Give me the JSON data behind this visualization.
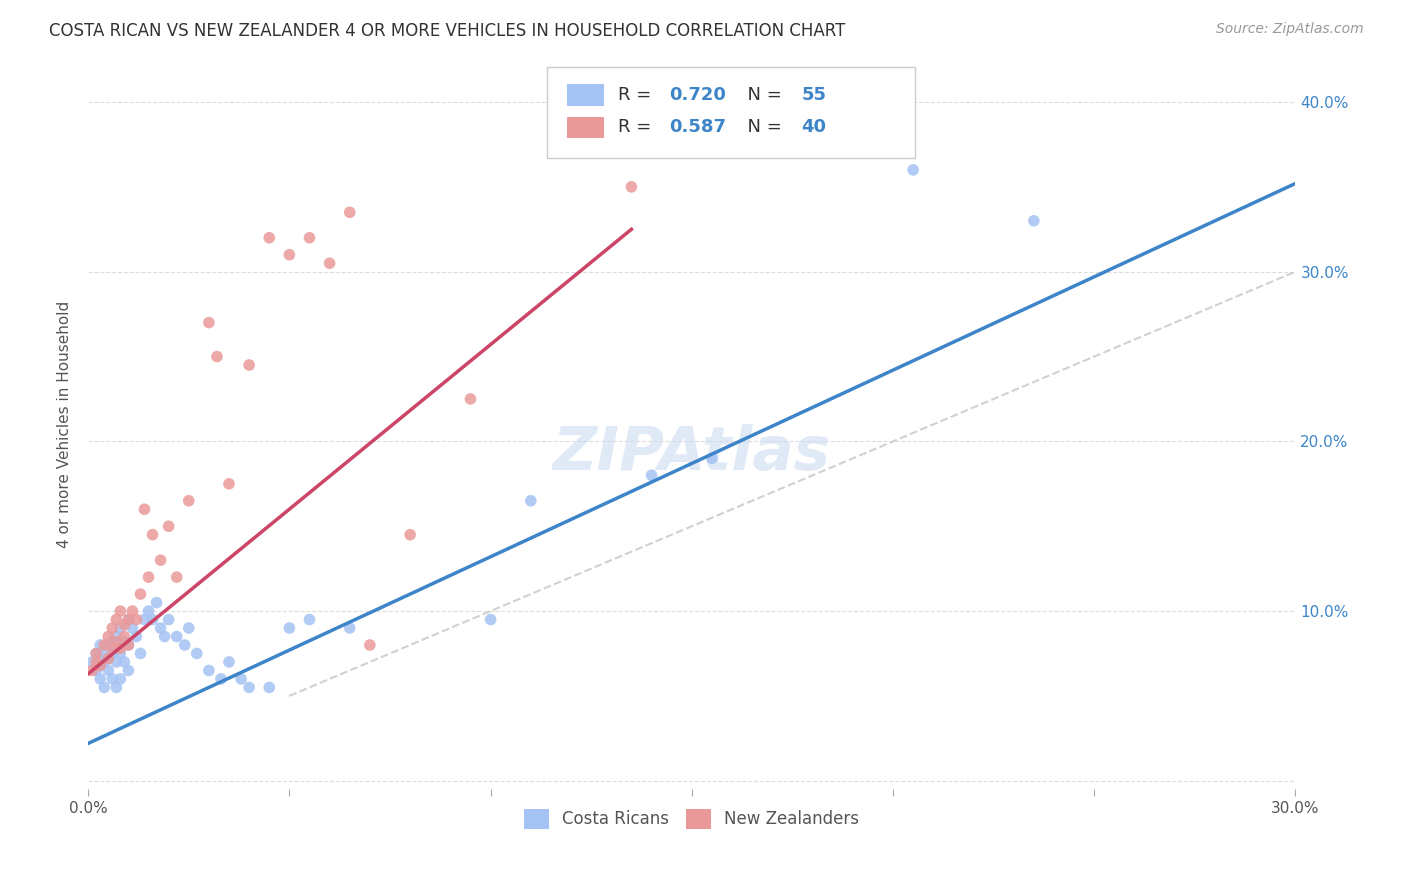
{
  "title": "COSTA RICAN VS NEW ZEALANDER 4 OR MORE VEHICLES IN HOUSEHOLD CORRELATION CHART",
  "source": "Source: ZipAtlas.com",
  "ylabel": "4 or more Vehicles in Household",
  "x_min": 0.0,
  "x_max": 0.3,
  "y_min": -0.005,
  "y_max": 0.425,
  "x_ticks": [
    0.0,
    0.05,
    0.1,
    0.15,
    0.2,
    0.25,
    0.3
  ],
  "x_tick_labels": [
    "0.0%",
    "",
    "",
    "",
    "",
    "",
    "30.0%"
  ],
  "y_ticks": [
    0.0,
    0.1,
    0.2,
    0.3,
    0.4
  ],
  "y_tick_labels": [
    "",
    "10.0%",
    "20.0%",
    "30.0%",
    "40.0%"
  ],
  "watermark": "ZIPAtlas",
  "blue_color": "#a4c2f4",
  "pink_color": "#ea9999",
  "blue_line_color": "#3d85c8",
  "pink_line_color": "#cc4466",
  "diagonal_color": "#cccccc",
  "R_blue": 0.72,
  "N_blue": 55,
  "R_pink": 0.587,
  "N_pink": 40,
  "legend_label_blue": "Costa Ricans",
  "legend_label_pink": "New Zealanders",
  "blue_scatter_x": [
    0.001,
    0.002,
    0.002,
    0.003,
    0.003,
    0.003,
    0.004,
    0.004,
    0.004,
    0.005,
    0.005,
    0.005,
    0.006,
    0.006,
    0.006,
    0.007,
    0.007,
    0.007,
    0.008,
    0.008,
    0.008,
    0.009,
    0.009,
    0.01,
    0.01,
    0.01,
    0.011,
    0.012,
    0.013,
    0.014,
    0.015,
    0.016,
    0.017,
    0.018,
    0.019,
    0.02,
    0.022,
    0.024,
    0.025,
    0.027,
    0.03,
    0.033,
    0.035,
    0.038,
    0.04,
    0.045,
    0.05,
    0.055,
    0.065,
    0.1,
    0.11,
    0.14,
    0.155,
    0.205,
    0.235
  ],
  "blue_scatter_y": [
    0.07,
    0.065,
    0.075,
    0.06,
    0.068,
    0.08,
    0.055,
    0.07,
    0.075,
    0.065,
    0.072,
    0.08,
    0.06,
    0.075,
    0.082,
    0.055,
    0.07,
    0.085,
    0.06,
    0.075,
    0.09,
    0.07,
    0.082,
    0.065,
    0.08,
    0.095,
    0.09,
    0.085,
    0.075,
    0.095,
    0.1,
    0.095,
    0.105,
    0.09,
    0.085,
    0.095,
    0.085,
    0.08,
    0.09,
    0.075,
    0.065,
    0.06,
    0.07,
    0.06,
    0.055,
    0.055,
    0.09,
    0.095,
    0.09,
    0.095,
    0.165,
    0.18,
    0.19,
    0.36,
    0.33
  ],
  "pink_scatter_x": [
    0.001,
    0.002,
    0.002,
    0.003,
    0.004,
    0.005,
    0.005,
    0.006,
    0.006,
    0.007,
    0.007,
    0.008,
    0.008,
    0.009,
    0.009,
    0.01,
    0.01,
    0.011,
    0.012,
    0.013,
    0.014,
    0.015,
    0.016,
    0.018,
    0.02,
    0.022,
    0.025,
    0.03,
    0.032,
    0.035,
    0.04,
    0.045,
    0.05,
    0.055,
    0.06,
    0.065,
    0.07,
    0.08,
    0.095,
    0.135
  ],
  "pink_scatter_y": [
    0.065,
    0.07,
    0.075,
    0.068,
    0.08,
    0.072,
    0.085,
    0.078,
    0.09,
    0.082,
    0.095,
    0.078,
    0.1,
    0.085,
    0.092,
    0.08,
    0.095,
    0.1,
    0.095,
    0.11,
    0.16,
    0.12,
    0.145,
    0.13,
    0.15,
    0.12,
    0.165,
    0.27,
    0.25,
    0.175,
    0.245,
    0.32,
    0.31,
    0.32,
    0.305,
    0.335,
    0.08,
    0.145,
    0.225,
    0.35
  ]
}
